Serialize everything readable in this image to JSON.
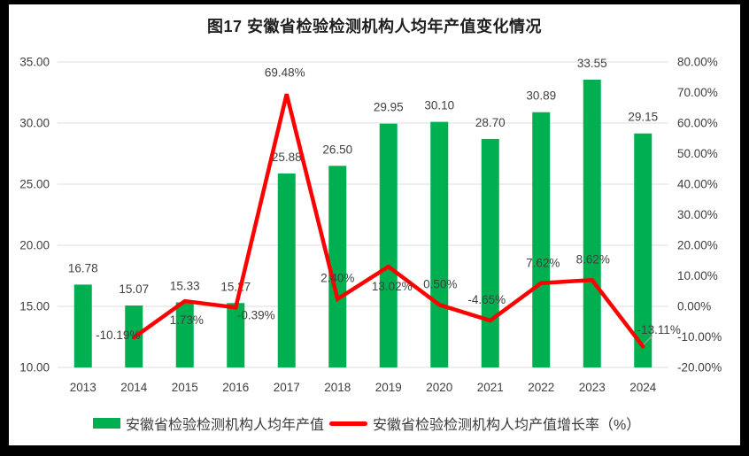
{
  "title": "图17 安徽省检验检测机构人均年产值变化情况",
  "legend": {
    "bar_label": "安徽省检验检测机构人均年产值",
    "line_label": "安徽省检验检测机构人均产值增长率（%）"
  },
  "colors": {
    "bar": "#00B050",
    "line": "#FF0000",
    "grid": "#DCDCDC",
    "text": "#404040",
    "title_text": "#1F1F1F",
    "frame": "#000000",
    "leader": "#A6A6A6",
    "background": "#FFFFFF"
  },
  "chart_data": {
    "type": "combo (bar + line, dual axis)",
    "title": "图17 安徽省检验检测机构人均年产值变化情况",
    "categories": [
      "2013",
      "2014",
      "2015",
      "2016",
      "2017",
      "2018",
      "2019",
      "2020",
      "2021",
      "2022",
      "2023",
      "2024"
    ],
    "series": [
      {
        "name": "安徽省检验检测机构人均年产值",
        "type": "bar",
        "axis": "left",
        "color": "#00B050",
        "values": [
          16.78,
          15.07,
          15.33,
          15.27,
          25.88,
          26.5,
          29.95,
          30.1,
          28.7,
          30.89,
          33.55,
          29.15
        ],
        "labels": [
          "16.78",
          "15.07",
          "15.33",
          "15.27",
          "25.88",
          "26.50",
          "29.95",
          "30.10",
          "28.70",
          "30.89",
          "33.55",
          "29.15"
        ]
      },
      {
        "name": "安徽省检验检测机构人均产值增长率（%）",
        "type": "line",
        "axis": "right",
        "color": "#FF0000",
        "values": [
          null,
          -10.19,
          1.73,
          -0.39,
          69.48,
          2.4,
          13.02,
          0.5,
          -4.65,
          7.62,
          8.62,
          -13.11
        ],
        "labels": [
          null,
          "-10.19%",
          "1.73%",
          "-0.39%",
          "69.48%",
          "2.40%",
          "13.02%",
          "0.50%",
          "-4.65%",
          "7.62%",
          "8.62%",
          "-13.11%"
        ]
      }
    ],
    "left_axis": {
      "min": 10,
      "max": 35,
      "step": 5,
      "tick_labels": [
        "10.00",
        "15.00",
        "20.00",
        "25.00",
        "30.00",
        "35.00"
      ]
    },
    "right_axis": {
      "min": -20,
      "max": 80,
      "step": 10,
      "tick_labels": [
        "-20.00%",
        "-10.00%",
        "0.00%",
        "10.00%",
        "20.00%",
        "30.00%",
        "40.00%",
        "50.00%",
        "60.00%",
        "70.00%",
        "80.00%"
      ]
    },
    "grid": true,
    "legend_position": "bottom"
  }
}
